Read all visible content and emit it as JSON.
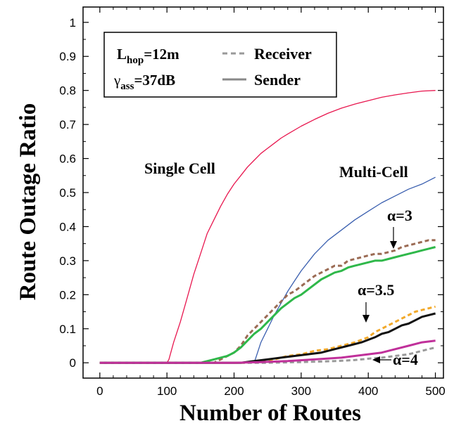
{
  "chart_data": {
    "type": "line",
    "xlabel": "Number of Routes",
    "ylabel": "Route Outage Ratio",
    "xlim": [
      -25,
      512
    ],
    "ylim": [
      -0.045,
      1.045
    ],
    "x_ticks": [
      "0",
      "100",
      "200",
      "300",
      "400",
      "500"
    ],
    "y_ticks": [
      "0",
      "0.1",
      "0.2",
      "0.3",
      "0.4",
      "0.5",
      "0.6",
      "0.7",
      "0.8",
      "0.9",
      "1"
    ],
    "x_tick_values": [
      0,
      100,
      200,
      300,
      400,
      500
    ],
    "y_tick_values": [
      0,
      0.1,
      0.2,
      0.3,
      0.4,
      0.5,
      0.6,
      0.7,
      0.8,
      0.9,
      1
    ],
    "grid": false,
    "legend": {
      "placement": "top-left",
      "param_line1": {
        "base": "L",
        "sub": "hop",
        "rest": "=12m"
      },
      "param_line2": {
        "base": "γ",
        "sub": "ass",
        "rest": "=37dB"
      },
      "receiver_label": "Receiver",
      "sender_label": "Sender"
    },
    "annotations": {
      "single_cell": "Single Cell",
      "multi_cell": "Multi-Cell",
      "alpha3": "α=3",
      "alpha35": "α=3.5",
      "alpha4": "α=4"
    },
    "series": [
      {
        "color": "#e8174f",
        "dash": "solid",
        "width": 1.3,
        "points": [
          [
            0,
            0
          ],
          [
            100,
            0
          ],
          [
            103,
            0.01
          ],
          [
            110,
            0.06
          ],
          [
            120,
            0.12
          ],
          [
            130,
            0.19
          ],
          [
            140,
            0.26
          ],
          [
            150,
            0.32
          ],
          [
            160,
            0.38
          ],
          [
            170,
            0.42
          ],
          [
            180,
            0.46
          ],
          [
            190,
            0.495
          ],
          [
            200,
            0.525
          ],
          [
            210,
            0.55
          ],
          [
            220,
            0.575
          ],
          [
            230,
            0.595
          ],
          [
            240,
            0.615
          ],
          [
            250,
            0.63
          ],
          [
            260,
            0.645
          ],
          [
            270,
            0.66
          ],
          [
            280,
            0.672
          ],
          [
            300,
            0.695
          ],
          [
            320,
            0.715
          ],
          [
            340,
            0.733
          ],
          [
            360,
            0.748
          ],
          [
            380,
            0.76
          ],
          [
            400,
            0.77
          ],
          [
            420,
            0.78
          ],
          [
            440,
            0.787
          ],
          [
            460,
            0.793
          ],
          [
            480,
            0.798
          ],
          [
            500,
            0.8
          ]
        ]
      },
      {
        "color": "#3a5faf",
        "dash": "solid",
        "width": 1.3,
        "points": [
          [
            0,
            0
          ],
          [
            230,
            0
          ],
          [
            235,
            0.03
          ],
          [
            240,
            0.06
          ],
          [
            250,
            0.1
          ],
          [
            260,
            0.14
          ],
          [
            270,
            0.175
          ],
          [
            280,
            0.21
          ],
          [
            290,
            0.24
          ],
          [
            300,
            0.27
          ],
          [
            320,
            0.32
          ],
          [
            340,
            0.36
          ],
          [
            360,
            0.39
          ],
          [
            380,
            0.42
          ],
          [
            400,
            0.445
          ],
          [
            420,
            0.47
          ],
          [
            440,
            0.49
          ],
          [
            460,
            0.51
          ],
          [
            480,
            0.525
          ],
          [
            500,
            0.545
          ]
        ]
      },
      {
        "color": "#9b6b54",
        "dash": "dashed",
        "width": 3,
        "points": [
          [
            0,
            0
          ],
          [
            170,
            0
          ],
          [
            180,
            0.01
          ],
          [
            190,
            0.02
          ],
          [
            200,
            0.03
          ],
          [
            210,
            0.05
          ],
          [
            220,
            0.08
          ],
          [
            230,
            0.1
          ],
          [
            240,
            0.12
          ],
          [
            250,
            0.14
          ],
          [
            260,
            0.16
          ],
          [
            270,
            0.18
          ],
          [
            280,
            0.2
          ],
          [
            290,
            0.21
          ],
          [
            300,
            0.225
          ],
          [
            310,
            0.24
          ],
          [
            320,
            0.255
          ],
          [
            330,
            0.265
          ],
          [
            340,
            0.275
          ],
          [
            350,
            0.285
          ],
          [
            360,
            0.285
          ],
          [
            370,
            0.3
          ],
          [
            380,
            0.305
          ],
          [
            390,
            0.31
          ],
          [
            400,
            0.315
          ],
          [
            410,
            0.32
          ],
          [
            420,
            0.32
          ],
          [
            430,
            0.325
          ],
          [
            440,
            0.33
          ],
          [
            450,
            0.34
          ],
          [
            460,
            0.345
          ],
          [
            470,
            0.35
          ],
          [
            480,
            0.355
          ],
          [
            490,
            0.36
          ],
          [
            500,
            0.36
          ]
        ]
      },
      {
        "color": "#2fb84a",
        "dash": "solid",
        "width": 3,
        "points": [
          [
            0,
            0
          ],
          [
            150,
            0
          ],
          [
            160,
            0.005
          ],
          [
            170,
            0.01
          ],
          [
            180,
            0.015
          ],
          [
            190,
            0.02
          ],
          [
            200,
            0.03
          ],
          [
            210,
            0.045
          ],
          [
            220,
            0.065
          ],
          [
            230,
            0.085
          ],
          [
            240,
            0.1
          ],
          [
            250,
            0.12
          ],
          [
            260,
            0.14
          ],
          [
            270,
            0.16
          ],
          [
            280,
            0.175
          ],
          [
            290,
            0.19
          ],
          [
            300,
            0.2
          ],
          [
            310,
            0.215
          ],
          [
            320,
            0.23
          ],
          [
            330,
            0.245
          ],
          [
            340,
            0.255
          ],
          [
            350,
            0.265
          ],
          [
            360,
            0.27
          ],
          [
            370,
            0.28
          ],
          [
            380,
            0.285
          ],
          [
            390,
            0.29
          ],
          [
            400,
            0.295
          ],
          [
            410,
            0.3
          ],
          [
            420,
            0.3
          ],
          [
            430,
            0.305
          ],
          [
            440,
            0.31
          ],
          [
            450,
            0.315
          ],
          [
            460,
            0.32
          ],
          [
            470,
            0.325
          ],
          [
            480,
            0.33
          ],
          [
            490,
            0.335
          ],
          [
            500,
            0.34
          ]
        ]
      },
      {
        "color": "#f2a92a",
        "dash": "dashed",
        "width": 3,
        "points": [
          [
            0,
            0
          ],
          [
            220,
            0
          ],
          [
            240,
            0.005
          ],
          [
            260,
            0.01
          ],
          [
            280,
            0.02
          ],
          [
            300,
            0.025
          ],
          [
            320,
            0.035
          ],
          [
            340,
            0.04
          ],
          [
            360,
            0.05
          ],
          [
            380,
            0.06
          ],
          [
            400,
            0.075
          ],
          [
            410,
            0.09
          ],
          [
            420,
            0.1
          ],
          [
            430,
            0.11
          ],
          [
            440,
            0.12
          ],
          [
            450,
            0.13
          ],
          [
            460,
            0.14
          ],
          [
            470,
            0.15
          ],
          [
            480,
            0.155
          ],
          [
            490,
            0.16
          ],
          [
            500,
            0.165
          ]
        ]
      },
      {
        "color": "#111111",
        "dash": "solid",
        "width": 3,
        "points": [
          [
            0,
            0
          ],
          [
            210,
            0
          ],
          [
            230,
            0.005
          ],
          [
            250,
            0.01
          ],
          [
            270,
            0.015
          ],
          [
            290,
            0.02
          ],
          [
            310,
            0.025
          ],
          [
            330,
            0.03
          ],
          [
            350,
            0.04
          ],
          [
            370,
            0.05
          ],
          [
            390,
            0.06
          ],
          [
            410,
            0.075
          ],
          [
            420,
            0.085
          ],
          [
            430,
            0.09
          ],
          [
            440,
            0.1
          ],
          [
            450,
            0.11
          ],
          [
            460,
            0.115
          ],
          [
            470,
            0.125
          ],
          [
            480,
            0.135
          ],
          [
            490,
            0.14
          ],
          [
            500,
            0.145
          ]
        ]
      },
      {
        "color": "#999999",
        "dash": "dashed",
        "width": 3,
        "points": [
          [
            0,
            0
          ],
          [
            250,
            0
          ],
          [
            300,
            0.002
          ],
          [
            350,
            0.005
          ],
          [
            380,
            0.008
          ],
          [
            400,
            0.012
          ],
          [
            420,
            0.015
          ],
          [
            440,
            0.02
          ],
          [
            460,
            0.025
          ],
          [
            480,
            0.035
          ],
          [
            500,
            0.045
          ]
        ]
      },
      {
        "color": "#c0309a",
        "dash": "solid",
        "width": 3,
        "points": [
          [
            0,
            0
          ],
          [
            200,
            0
          ],
          [
            240,
            0.002
          ],
          [
            280,
            0.005
          ],
          [
            320,
            0.01
          ],
          [
            360,
            0.015
          ],
          [
            380,
            0.02
          ],
          [
            400,
            0.025
          ],
          [
            420,
            0.03
          ],
          [
            440,
            0.04
          ],
          [
            460,
            0.05
          ],
          [
            480,
            0.06
          ],
          [
            500,
            0.065
          ]
        ]
      }
    ]
  }
}
